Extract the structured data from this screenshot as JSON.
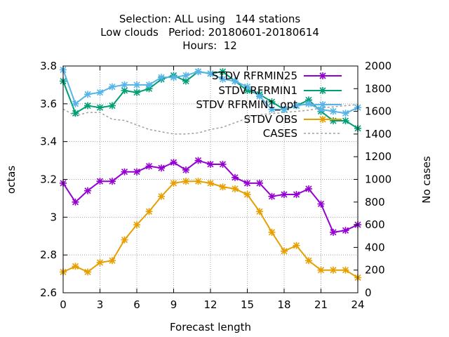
{
  "chart_data": {
    "type": "line",
    "title": [
      "Selection: ALL using   144 stations",
      "Low clouds   Period: 20180601-20180614",
      "Hours:  12"
    ],
    "xlabel": "Forecast length",
    "ylabel": "octas",
    "y2label": "No cases",
    "xlim": [
      0,
      24
    ],
    "ylim": [
      2.6,
      3.8
    ],
    "y2lim": [
      0,
      2000
    ],
    "xticks": [
      "0",
      "3",
      "6",
      "9",
      "12",
      "15",
      "18",
      "21",
      "24"
    ],
    "yticks": [
      "2.6",
      "2.8",
      "3",
      "3.2",
      "3.4",
      "3.6",
      "3.8"
    ],
    "y2ticks": [
      "0",
      "200",
      "400",
      "600",
      "800",
      "1000",
      "1200",
      "1400",
      "1600",
      "1800",
      "2000"
    ],
    "grid": true,
    "legend": "top-right",
    "x": [
      0,
      1,
      2,
      3,
      4,
      5,
      6,
      7,
      8,
      9,
      10,
      11,
      12,
      13,
      14,
      15,
      16,
      17,
      18,
      19,
      20,
      21,
      22,
      23,
      24
    ],
    "series": [
      {
        "name": "STDV RFRMIN25",
        "color": "#9400d3",
        "marker": "x",
        "axis": "y",
        "values": [
          3.18,
          3.08,
          3.14,
          3.19,
          3.19,
          3.24,
          3.24,
          3.27,
          3.26,
          3.29,
          3.25,
          3.3,
          3.28,
          3.28,
          3.21,
          3.18,
          3.18,
          3.11,
          3.12,
          3.12,
          3.15,
          3.07,
          2.92,
          2.93,
          2.96
        ]
      },
      {
        "name": "STDV RFRMIN1",
        "color": "#009e73",
        "marker": "x",
        "axis": "y",
        "values": [
          3.72,
          3.55,
          3.59,
          3.58,
          3.59,
          3.67,
          3.66,
          3.68,
          3.73,
          3.75,
          3.72,
          3.77,
          3.76,
          3.77,
          3.72,
          3.67,
          3.65,
          3.61,
          3.57,
          3.59,
          3.62,
          3.56,
          3.51,
          3.51,
          3.47
        ]
      },
      {
        "name": "STDV RFRMIN1_opt",
        "color": "#56b4e9",
        "marker": "x",
        "axis": "y",
        "values": [
          3.78,
          3.6,
          3.65,
          3.66,
          3.69,
          3.7,
          3.7,
          3.7,
          3.74,
          3.74,
          3.75,
          3.77,
          3.76,
          3.73,
          3.72,
          3.69,
          3.64,
          3.57,
          3.57,
          3.59,
          3.6,
          3.57,
          3.56,
          3.55,
          3.58
        ]
      },
      {
        "name": "STDV OBS",
        "color": "#e69f00",
        "marker": "x",
        "axis": "y",
        "values": [
          2.71,
          2.74,
          2.71,
          2.76,
          2.77,
          2.88,
          2.96,
          3.03,
          3.11,
          3.18,
          3.19,
          3.19,
          3.18,
          3.16,
          3.15,
          3.12,
          3.03,
          2.92,
          2.82,
          2.85,
          2.77,
          2.72,
          2.72,
          2.72,
          2.68
        ]
      },
      {
        "name": "CASES",
        "color": "#a0a0a0",
        "dash": true,
        "axis": "y2",
        "x": [
          0,
          1,
          2,
          3,
          4,
          5,
          6,
          7,
          8,
          9,
          10,
          11,
          12,
          13,
          14,
          15,
          16,
          17,
          18,
          19,
          20,
          21,
          22,
          23,
          24
        ],
        "values": [
          1620,
          1560,
          1590,
          1590,
          1530,
          1520,
          1480,
          1440,
          1420,
          1400,
          1400,
          1410,
          1440,
          1460,
          1500,
          1540,
          1570,
          1580,
          1590,
          1600,
          1610,
          1630,
          1640,
          1650,
          1660
        ]
      }
    ]
  }
}
